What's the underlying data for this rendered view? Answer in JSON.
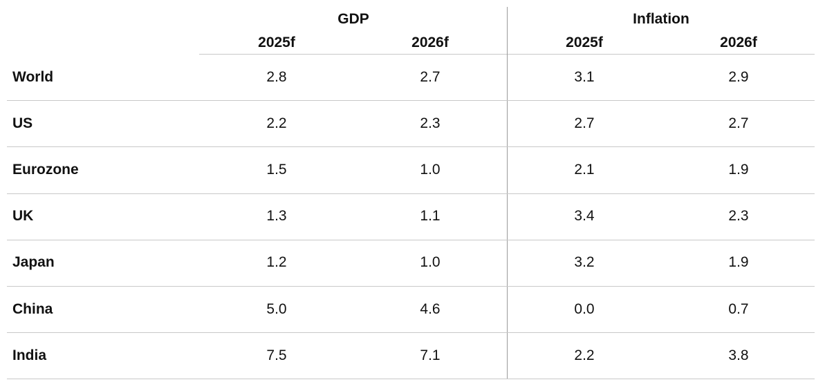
{
  "table": {
    "groups": [
      "GDP",
      "Inflation"
    ],
    "columns": [
      "2025f",
      "2026f",
      "2025f",
      "2026f"
    ],
    "rows": [
      [
        "World",
        "2.8",
        "2.7",
        "3.1",
        "2.9"
      ],
      [
        "US",
        "2.2",
        "2.3",
        "2.7",
        "2.7"
      ],
      [
        "Eurozone",
        "1.5",
        "1.0",
        "2.1",
        "1.9"
      ],
      [
        "UK",
        "1.3",
        "1.1",
        "3.4",
        "2.3"
      ],
      [
        "Japan",
        "1.2",
        "1.0",
        "3.2",
        "1.9"
      ],
      [
        "China",
        "5.0",
        "4.6",
        "0.0",
        "0.7"
      ],
      [
        "India",
        "7.5",
        "7.1",
        "2.2",
        "3.8"
      ]
    ]
  }
}
